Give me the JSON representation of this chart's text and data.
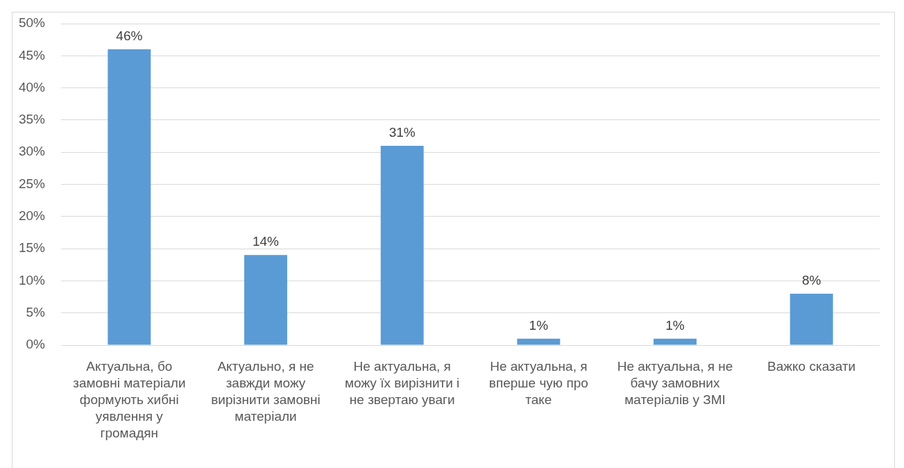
{
  "chart_data": {
    "type": "bar",
    "categories": [
      "Актуальна, бо замовні матеріали формують хибні уявлення у громадян",
      "Актуально, я не завжди можу вирізнити замовні матеріали",
      "Не актуальна, я можу їх вирізнити і не звертаю уваги",
      "Не актуальна, я вперше чую про таке",
      "Не актуальна, я не бачу замовних матеріалів у ЗМІ",
      "Важко сказати"
    ],
    "values": [
      46,
      14,
      31,
      1,
      1,
      8
    ],
    "color": "#5b9bd5",
    "value_labels": [
      "46%",
      "14%",
      "31%",
      "1%",
      "1%",
      "8%"
    ],
    "ylim": [
      0,
      50
    ],
    "yticks": [
      {
        "value": 0,
        "label": "0%"
      },
      {
        "value": 5,
        "label": "5%"
      },
      {
        "value": 10,
        "label": "10%"
      },
      {
        "value": 15,
        "label": "15%"
      },
      {
        "value": 20,
        "label": "20%"
      },
      {
        "value": 25,
        "label": "25%"
      },
      {
        "value": 30,
        "label": "30%"
      },
      {
        "value": 35,
        "label": "35%"
      },
      {
        "value": 40,
        "label": "40%"
      },
      {
        "value": 45,
        "label": "45%"
      },
      {
        "value": 50,
        "label": "50%"
      }
    ],
    "grid": "y"
  }
}
